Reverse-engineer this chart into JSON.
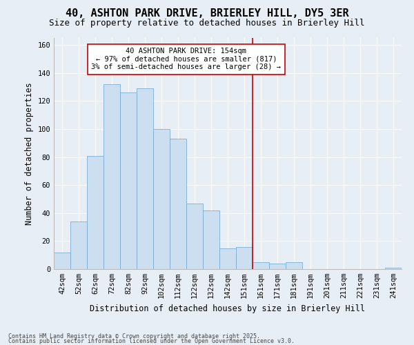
{
  "title": "40, ASHTON PARK DRIVE, BRIERLEY HILL, DY5 3ER",
  "subtitle": "Size of property relative to detached houses in Brierley Hill",
  "xlabel": "Distribution of detached houses by size in Brierley Hill",
  "ylabel": "Number of detached properties",
  "footnote1": "Contains HM Land Registry data © Crown copyright and database right 2025.",
  "footnote2": "Contains public sector information licensed under the Open Government Licence v3.0.",
  "bar_labels": [
    "42sqm",
    "52sqm",
    "62sqm",
    "72sqm",
    "82sqm",
    "92sqm",
    "102sqm",
    "112sqm",
    "122sqm",
    "132sqm",
    "142sqm",
    "151sqm",
    "161sqm",
    "171sqm",
    "181sqm",
    "191sqm",
    "201sqm",
    "211sqm",
    "221sqm",
    "231sqm",
    "241sqm"
  ],
  "bar_values": [
    12,
    34,
    81,
    132,
    126,
    129,
    100,
    93,
    47,
    42,
    15,
    16,
    5,
    4,
    5,
    0,
    0,
    0,
    0,
    0,
    1
  ],
  "bar_color": "#ccdff0",
  "bar_edge_color": "#7bafd4",
  "ylim": [
    0,
    165
  ],
  "yticks": [
    0,
    20,
    40,
    60,
    80,
    100,
    120,
    140,
    160
  ],
  "vline_x_index": 11.5,
  "vline_color": "#cc0000",
  "annotation_text": "40 ASHTON PARK DRIVE: 154sqm\n← 97% of detached houses are smaller (817)\n3% of semi-detached houses are larger (28) →",
  "background_color": "#e8eef5",
  "grid_color": "#ffffff",
  "title_fontsize": 11,
  "subtitle_fontsize": 9,
  "tick_fontsize": 7.5,
  "label_fontsize": 8.5,
  "annot_fontsize": 7.5
}
